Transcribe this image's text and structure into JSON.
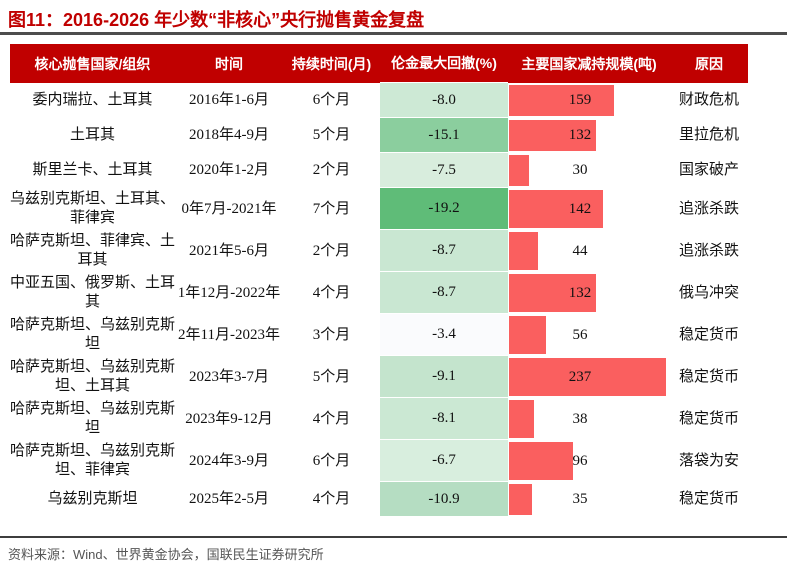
{
  "figure": {
    "title": "图11：2016-2026 年少数“非核心”央行抛售黄金复盘",
    "source_note": "资料来源：Wind、世界黄金协会，国联民生证券研究所"
  },
  "colors": {
    "title_text": "#c00000",
    "header_bg": "#c00000",
    "header_text": "#ffffff",
    "bar_red": "#fa5f5f",
    "title_rule": "#4d4d4d",
    "footer_rule": "#3d3d3d",
    "source_text": "#555555",
    "drawdown_scale_low": "#fafbfd",
    "drawdown_scale_high": "#5fbc78"
  },
  "chart_data": {
    "type": "table",
    "title": "图11：2016-2026 年少数“非核心”央行抛售黄金复盘",
    "columns": [
      "核心抛售国家/组织",
      "时间",
      "持续时间(月)",
      "伦金最大回撤(%)",
      "主要国家减持规模(吨)",
      "原因"
    ],
    "bar_column": "主要国家减持规模(吨)",
    "bar_max": 237,
    "color_scale_column": "伦金最大回撤(%)",
    "rows": [
      {
        "country": "委内瑞拉、土耳其",
        "time": "2016年1-6月",
        "duration_months": "6个月",
        "max_drawdown_pct": -8.0,
        "drawdown_display": "-8.0",
        "drawdown_bg": "#cde9d5",
        "reduction_tons": 159,
        "reason": "财政危机"
      },
      {
        "country": "土耳其",
        "time": "2018年4-9月",
        "duration_months": "5个月",
        "max_drawdown_pct": -15.1,
        "drawdown_display": "-15.1",
        "drawdown_bg": "#8bce9e",
        "reduction_tons": 132,
        "reason": "里拉危机"
      },
      {
        "country": "斯里兰卡、土耳其",
        "time": "2020年1-2月",
        "duration_months": "2个月",
        "max_drawdown_pct": -7.5,
        "drawdown_display": "-7.5",
        "drawdown_bg": "#d8eddd",
        "reduction_tons": 30,
        "reason": "国家破产"
      },
      {
        "country": "乌兹别克斯坦、土耳其、菲律宾",
        "time": "0年7月-2021年",
        "duration_months": "7个月",
        "max_drawdown_pct": -19.2,
        "drawdown_display": "-19.2",
        "drawdown_bg": "#5fbc78",
        "reduction_tons": 142,
        "reason": "追涨杀跌"
      },
      {
        "country": "哈萨克斯坦、菲律宾、土耳其",
        "time": "2021年5-6月",
        "duration_months": "2个月",
        "max_drawdown_pct": -8.7,
        "drawdown_display": "-8.7",
        "drawdown_bg": "#c9e7d2",
        "reduction_tons": 44,
        "reason": "追涨杀跌"
      },
      {
        "country": "中亚五国、俄罗斯、土耳其",
        "time": "1年12月-2022年",
        "duration_months": "4个月",
        "max_drawdown_pct": -8.7,
        "drawdown_display": "-8.7",
        "drawdown_bg": "#c9e7d2",
        "reduction_tons": 132,
        "reason": "俄乌冲突"
      },
      {
        "country": "哈萨克斯坦、乌兹别克斯坦",
        "time": "2年11月-2023年",
        "duration_months": "3个月",
        "max_drawdown_pct": -3.4,
        "drawdown_display": "-3.4",
        "drawdown_bg": "#fafbfd",
        "reduction_tons": 56,
        "reason": "稳定货币"
      },
      {
        "country": "哈萨克斯坦、乌兹别克斯坦、土耳其",
        "time": "2023年3-7月",
        "duration_months": "5个月",
        "max_drawdown_pct": -9.1,
        "drawdown_display": "-9.1",
        "drawdown_bg": "#c4e4cd",
        "reduction_tons": 237,
        "reason": "稳定货币"
      },
      {
        "country": "哈萨克斯坦、乌兹别克斯坦",
        "time": "2023年9-12月",
        "duration_months": "4个月",
        "max_drawdown_pct": -8.1,
        "drawdown_display": "-8.1",
        "drawdown_bg": "#cbe8d3",
        "reduction_tons": 38,
        "reason": "稳定货币"
      },
      {
        "country": "哈萨克斯坦、乌兹别克斯坦、菲律宾",
        "time": "2024年3-9月",
        "duration_months": "6个月",
        "max_drawdown_pct": -6.7,
        "drawdown_display": "-6.7",
        "drawdown_bg": "#d8eede",
        "reduction_tons": 96,
        "reason": "落袋为安"
      },
      {
        "country": "乌兹别克斯坦",
        "time": "2025年2-5月",
        "duration_months": "4个月",
        "max_drawdown_pct": -10.9,
        "drawdown_display": "-10.9",
        "drawdown_bg": "#b5ddc2",
        "reduction_tons": 35,
        "reason": "稳定货币"
      }
    ]
  }
}
